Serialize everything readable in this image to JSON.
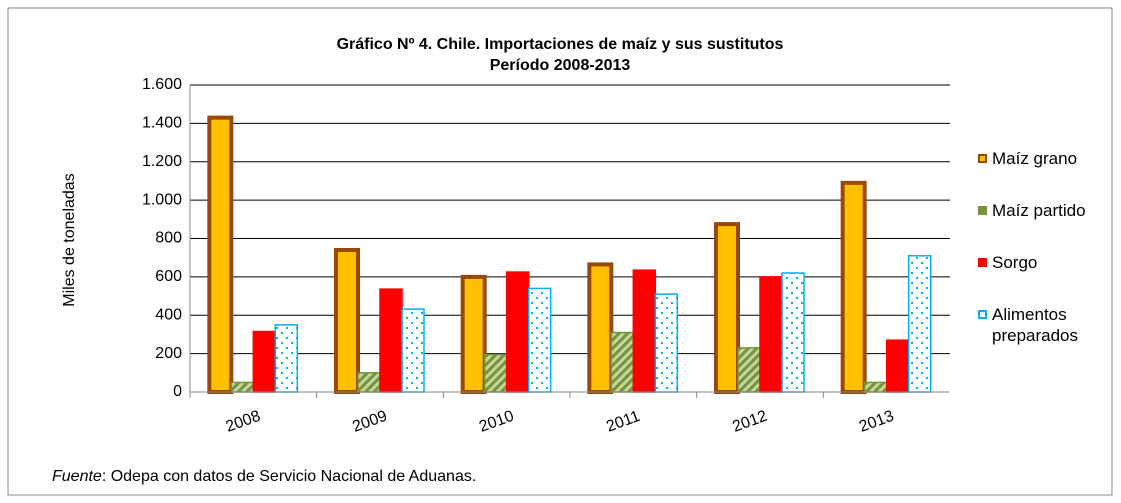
{
  "chart_data": {
    "type": "bar",
    "title": "Gráfico Nº 4. Chile. Importaciones de maíz y sus sustitutos",
    "subtitle": "Período 2008-2013",
    "y_label": "Miles de  toneladas",
    "categories": [
      "2008",
      "2009",
      "2010",
      "2011",
      "2012",
      "2013"
    ],
    "series": [
      {
        "name": "Maíz grano",
        "color": "#ffc000",
        "values": [
          1430,
          740,
          600,
          665,
          875,
          1090
        ]
      },
      {
        "name": "Maíz partido",
        "color": "#77933c",
        "values": [
          50,
          100,
          195,
          310,
          230,
          50
        ]
      },
      {
        "name": "Sorgo",
        "color": "#ff0000",
        "values": [
          315,
          536,
          625,
          635,
          600,
          270
        ]
      },
      {
        "name": "Alimentos preparados",
        "color": "#00b0f0",
        "values": [
          350,
          432,
          540,
          510,
          620,
          710
        ]
      }
    ],
    "ylim": [
      0,
      1600
    ],
    "yticks": [
      0,
      200,
      400,
      600,
      800,
      {
        "value": 1000,
        "label": "1.000"
      },
      {
        "value": 1200,
        "label": "1.200"
      },
      {
        "value": 1400,
        "label": "1.400"
      },
      {
        "value": 1600,
        "label": "1.600"
      }
    ],
    "grid": true,
    "legend": "right",
    "source_label": "Fuente",
    "source_text": ": Odepa con datos de Servicio Nacional de Aduanas."
  }
}
